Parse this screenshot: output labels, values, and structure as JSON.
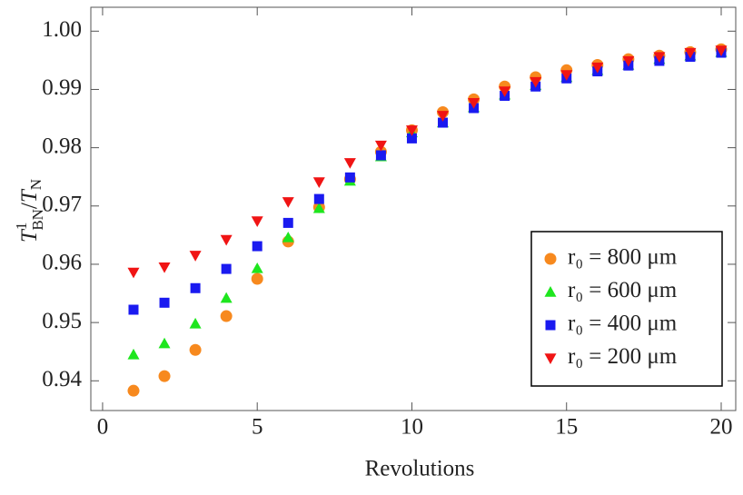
{
  "chart_data": {
    "type": "scatter",
    "x_label": "Revolutions",
    "y_label": {
      "base": "T",
      "sup": "1",
      "sub": "BN",
      "sep": "/",
      "base2": "T",
      "sub2": "N"
    },
    "x": [
      1,
      2,
      3,
      4,
      5,
      6,
      7,
      8,
      9,
      10,
      11,
      12,
      13,
      14,
      15,
      16,
      17,
      18,
      19,
      20
    ],
    "series": [
      {
        "name": "r₀ = 800 μm",
        "color": "#f7891e",
        "marker": "circle",
        "values": [
          0.9383,
          0.9408,
          0.9453,
          0.9511,
          0.9575,
          0.9639,
          0.9698,
          0.9746,
          0.9793,
          0.983,
          0.9861,
          0.9883,
          0.9905,
          0.9921,
          0.9933,
          0.9942,
          0.9952,
          0.9958,
          0.9964,
          0.9969
        ]
      },
      {
        "name": "r₀ = 600 μm",
        "color": "#1ee61e",
        "marker": "triangle-up",
        "values": [
          0.9445,
          0.9464,
          0.9498,
          0.9542,
          0.9593,
          0.9646,
          0.9696,
          0.9743,
          0.9785,
          0.9826,
          0.9843,
          0.9869,
          0.9891,
          0.9907,
          0.9921,
          0.9933,
          0.9942,
          0.9952,
          0.9958,
          0.9964
        ]
      },
      {
        "name": "r₀ = 400 μm",
        "color": "#1a1af0",
        "marker": "square",
        "values": [
          0.9522,
          0.9534,
          0.9559,
          0.9592,
          0.9631,
          0.9671,
          0.9712,
          0.9749,
          0.9787,
          0.9816,
          0.9843,
          0.9868,
          0.9889,
          0.9905,
          0.9919,
          0.9931,
          0.9941,
          0.9949,
          0.9956,
          0.9963
        ]
      },
      {
        "name": "r₀ = 200 μm",
        "color": "#f01414",
        "marker": "triangle-down",
        "values": [
          0.9586,
          0.9595,
          0.9615,
          0.9642,
          0.9674,
          0.9707,
          0.9741,
          0.9774,
          0.9804,
          0.983,
          0.9855,
          0.9877,
          0.9897,
          0.9913,
          0.9925,
          0.9938,
          0.9949,
          0.9956,
          0.9963,
          0.9967
        ]
      }
    ],
    "xlim": [
      -0.38,
      20.47
    ],
    "ylim": [
      0.9349,
      1.0041
    ],
    "xticks": [
      0,
      5,
      10,
      15,
      20
    ],
    "yticks": [
      0.94,
      0.95,
      0.96,
      0.97,
      0.98,
      0.99,
      {
        "value": 1,
        "label": "1.00"
      }
    ],
    "legend": "lower right"
  }
}
